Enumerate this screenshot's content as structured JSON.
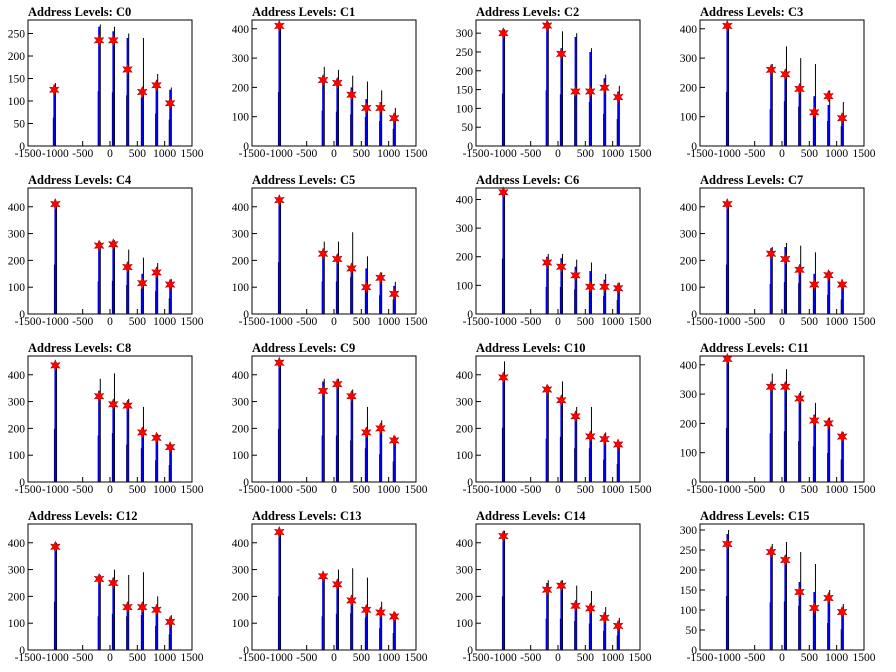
{
  "colors": {
    "background": "#ffffff",
    "axis": "#000000",
    "histogram_black": "#000000",
    "histogram_blue": "#0000ff",
    "marker": "#ff0000"
  },
  "chart_data": [
    {
      "title": "Address Levels: C0",
      "type": "bar",
      "xlim": [
        -1500,
        1500
      ],
      "ylim": [
        0,
        280
      ],
      "xticks": [
        "-1500",
        "-1000",
        "-500",
        "0",
        "500",
        "1000",
        "1500"
      ],
      "yticks": [
        "0",
        "50",
        "100",
        "150",
        "200",
        "250"
      ],
      "peaks_x": [
        -1020,
        -200,
        60,
        320,
        590,
        850,
        1100
      ],
      "peaks_y_black": [
        140,
        270,
        265,
        250,
        240,
        160,
        130
      ],
      "peaks_y_blue": [
        135,
        265,
        255,
        240,
        125,
        135,
        125
      ],
      "markers_y": [
        125,
        235,
        235,
        170,
        120,
        135,
        95
      ]
    },
    {
      "title": "Address Levels: C1",
      "type": "bar",
      "xlim": [
        -1500,
        1500
      ],
      "ylim": [
        0,
        430
      ],
      "xticks": [
        "-1500",
        "-1000",
        "-500",
        "0",
        "500",
        "1000",
        "1500"
      ],
      "yticks": [
        "0",
        "100",
        "200",
        "300",
        "400"
      ],
      "peaks_x": [
        -1000,
        -200,
        60,
        320,
        590,
        850,
        1100
      ],
      "peaks_y_black": [
        410,
        270,
        260,
        240,
        220,
        190,
        130
      ],
      "peaks_y_blue": [
        405,
        240,
        230,
        200,
        160,
        150,
        110
      ],
      "markers_y": [
        410,
        225,
        215,
        175,
        130,
        130,
        95
      ]
    },
    {
      "title": "Address Levels: C2",
      "type": "bar",
      "xlim": [
        -1500,
        1500
      ],
      "ylim": [
        0,
        335
      ],
      "xticks": [
        "-1500",
        "-1000",
        "-500",
        "0",
        "500",
        "1000",
        "1500"
      ],
      "yticks": [
        "0",
        "50",
        "100",
        "150",
        "200",
        "250",
        "300"
      ],
      "peaks_x": [
        -1000,
        -200,
        60,
        320,
        590,
        850,
        1100
      ],
      "peaks_y_black": [
        310,
        330,
        305,
        300,
        260,
        190,
        160
      ],
      "peaks_y_blue": [
        305,
        320,
        260,
        290,
        250,
        180,
        145
      ],
      "markers_y": [
        300,
        320,
        245,
        145,
        145,
        155,
        130
      ]
    },
    {
      "title": "Address Levels: C3",
      "type": "bar",
      "xlim": [
        -1500,
        1500
      ],
      "ylim": [
        0,
        430
      ],
      "xticks": [
        "-1500",
        "-1000",
        "-500",
        "0",
        "500",
        "1000",
        "1500"
      ],
      "yticks": [
        "0",
        "100",
        "200",
        "300",
        "400"
      ],
      "peaks_x": [
        -1000,
        -200,
        60,
        320,
        590,
        850,
        1100
      ],
      "peaks_y_black": [
        410,
        280,
        340,
        300,
        280,
        190,
        150
      ],
      "peaks_y_blue": [
        405,
        270,
        250,
        200,
        170,
        140,
        110
      ],
      "markers_y": [
        410,
        260,
        245,
        195,
        115,
        170,
        95
      ]
    },
    {
      "title": "Address Levels: C4",
      "type": "bar",
      "xlim": [
        -1500,
        1500
      ],
      "ylim": [
        0,
        470
      ],
      "xticks": [
        "-1500",
        "-1000",
        "-500",
        "0",
        "500",
        "1000",
        "1500"
      ],
      "yticks": [
        "0",
        "100",
        "200",
        "300",
        "400"
      ],
      "peaks_x": [
        -1000,
        -200,
        60,
        320,
        590,
        850,
        1100
      ],
      "peaks_y_black": [
        410,
        270,
        275,
        240,
        210,
        190,
        130
      ],
      "peaks_y_blue": [
        405,
        265,
        260,
        180,
        150,
        170,
        110
      ],
      "markers_y": [
        410,
        255,
        260,
        175,
        115,
        155,
        110
      ]
    },
    {
      "title": "Address Levels: C5",
      "type": "bar",
      "xlim": [
        -1500,
        1500
      ],
      "ylim": [
        0,
        470
      ],
      "xticks": [
        "-1500",
        "-1000",
        "-500",
        "0",
        "500",
        "1000",
        "1500"
      ],
      "yticks": [
        "0",
        "100",
        "200",
        "300",
        "400"
      ],
      "peaks_x": [
        -1000,
        -200,
        60,
        320,
        590,
        850,
        1100
      ],
      "peaks_y_black": [
        430,
        270,
        270,
        305,
        215,
        155,
        120
      ],
      "peaks_y_blue": [
        425,
        230,
        220,
        185,
        170,
        150,
        105
      ],
      "markers_y": [
        425,
        225,
        205,
        170,
        100,
        135,
        75
      ]
    },
    {
      "title": "Address Levels: C6",
      "type": "bar",
      "xlim": [
        -1500,
        1500
      ],
      "ylim": [
        0,
        440
      ],
      "xticks": [
        "-1500",
        "-1000",
        "-500",
        "0",
        "500",
        "1000",
        "1500"
      ],
      "yticks": [
        "0",
        "100",
        "200",
        "300",
        "400"
      ],
      "peaks_x": [
        -1000,
        -200,
        60,
        320,
        590,
        850,
        1100
      ],
      "peaks_y_black": [
        430,
        210,
        210,
        190,
        180,
        140,
        110
      ],
      "peaks_y_blue": [
        425,
        200,
        195,
        165,
        150,
        120,
        100
      ],
      "markers_y": [
        425,
        180,
        165,
        135,
        95,
        95,
        90
      ]
    },
    {
      "title": "Address Levels: C7",
      "type": "bar",
      "xlim": [
        -1500,
        1500
      ],
      "ylim": [
        0,
        470
      ],
      "xticks": [
        "-1500",
        "-1000",
        "-500",
        "0",
        "500",
        "1000",
        "1500"
      ],
      "yticks": [
        "0",
        "100",
        "200",
        "300",
        "400"
      ],
      "peaks_x": [
        -1000,
        -200,
        60,
        320,
        590,
        850,
        1100
      ],
      "peaks_y_black": [
        410,
        250,
        265,
        255,
        230,
        160,
        120
      ],
      "peaks_y_blue": [
        405,
        245,
        250,
        180,
        150,
        155,
        110
      ],
      "markers_y": [
        410,
        225,
        205,
        165,
        110,
        145,
        110
      ]
    },
    {
      "title": "Address Levels: C8",
      "type": "bar",
      "xlim": [
        -1500,
        1500
      ],
      "ylim": [
        0,
        470
      ],
      "xticks": [
        "-1500",
        "-1000",
        "-500",
        "0",
        "500",
        "1000",
        "1500"
      ],
      "yticks": [
        "0",
        "100",
        "200",
        "300",
        "400"
      ],
      "peaks_x": [
        -1000,
        -200,
        60,
        320,
        590,
        850,
        1100
      ],
      "peaks_y_black": [
        440,
        385,
        405,
        310,
        280,
        180,
        140
      ],
      "peaks_y_blue": [
        435,
        340,
        300,
        295,
        200,
        175,
        125
      ],
      "markers_y": [
        435,
        320,
        290,
        285,
        185,
        165,
        130
      ]
    },
    {
      "title": "Address Levels: C9",
      "type": "bar",
      "xlim": [
        -1500,
        1500
      ],
      "ylim": [
        0,
        470
      ],
      "xticks": [
        "-1500",
        "-1000",
        "-500",
        "0",
        "500",
        "1000",
        "1500"
      ],
      "yticks": [
        "0",
        "100",
        "200",
        "300",
        "400"
      ],
      "peaks_x": [
        -1000,
        -200,
        60,
        320,
        590,
        850,
        1100
      ],
      "peaks_y_black": [
        440,
        385,
        385,
        345,
        280,
        230,
        170
      ],
      "peaks_y_blue": [
        435,
        375,
        370,
        330,
        200,
        210,
        160
      ],
      "markers_y": [
        445,
        340,
        365,
        320,
        185,
        200,
        155
      ]
    },
    {
      "title": "Address Levels: C10",
      "type": "bar",
      "xlim": [
        -1500,
        1500
      ],
      "ylim": [
        0,
        470
      ],
      "xticks": [
        "-1500",
        "-1000",
        "-500",
        "0",
        "500",
        "1000",
        "1500"
      ],
      "yticks": [
        "0",
        "100",
        "200",
        "300",
        "400"
      ],
      "peaks_x": [
        -1000,
        -200,
        60,
        320,
        590,
        850,
        1100
      ],
      "peaks_y_black": [
        450,
        360,
        375,
        280,
        280,
        185,
        150
      ],
      "peaks_y_blue": [
        400,
        350,
        310,
        250,
        180,
        170,
        140
      ],
      "markers_y": [
        390,
        345,
        305,
        245,
        170,
        160,
        140
      ]
    },
    {
      "title": "Address Levels: C11",
      "type": "bar",
      "xlim": [
        -1500,
        1500
      ],
      "ylim": [
        0,
        430
      ],
      "xticks": [
        "-1500",
        "-1000",
        "-500",
        "0",
        "500",
        "1000",
        "1500"
      ],
      "yticks": [
        "0",
        "100",
        "200",
        "300",
        "400"
      ],
      "peaks_x": [
        -1000,
        -200,
        60,
        320,
        590,
        850,
        1100
      ],
      "peaks_y_black": [
        410,
        370,
        385,
        310,
        270,
        220,
        170
      ],
      "peaks_y_blue": [
        405,
        340,
        330,
        300,
        230,
        210,
        160
      ],
      "markers_y": [
        420,
        325,
        325,
        285,
        210,
        200,
        155
      ]
    },
    {
      "title": "Address Levels: C12",
      "type": "bar",
      "xlim": [
        -1500,
        1500
      ],
      "ylim": [
        0,
        470
      ],
      "xticks": [
        "-1500",
        "-1000",
        "-500",
        "0",
        "500",
        "1000",
        "1500"
      ],
      "yticks": [
        "0",
        "100",
        "200",
        "300",
        "400"
      ],
      "peaks_x": [
        -1000,
        -200,
        60,
        320,
        590,
        850,
        1100
      ],
      "peaks_y_black": [
        400,
        280,
        300,
        280,
        290,
        200,
        130
      ],
      "peaks_y_blue": [
        395,
        275,
        270,
        170,
        170,
        160,
        110
      ],
      "markers_y": [
        385,
        265,
        250,
        160,
        160,
        150,
        105
      ]
    },
    {
      "title": "Address Levels: C13",
      "type": "bar",
      "xlim": [
        -1500,
        1500
      ],
      "ylim": [
        0,
        470
      ],
      "xticks": [
        "-1500",
        "-1000",
        "-500",
        "0",
        "500",
        "1000",
        "1500"
      ],
      "yticks": [
        "0",
        "100",
        "200",
        "300",
        "400"
      ],
      "peaks_x": [
        -1000,
        -200,
        60,
        320,
        590,
        850,
        1100
      ],
      "peaks_y_black": [
        445,
        280,
        300,
        305,
        270,
        180,
        140
      ],
      "peaks_y_blue": [
        440,
        275,
        250,
        190,
        155,
        150,
        130
      ],
      "markers_y": [
        440,
        275,
        245,
        185,
        150,
        140,
        125
      ]
    },
    {
      "title": "Address Levels: C14",
      "type": "bar",
      "xlim": [
        -1500,
        1500
      ],
      "ylim": [
        0,
        470
      ],
      "xticks": [
        "-1500",
        "-1000",
        "-500",
        "0",
        "500",
        "1000",
        "1500"
      ],
      "yticks": [
        "0",
        "100",
        "200",
        "300",
        "400"
      ],
      "peaks_x": [
        -1000,
        -200,
        60,
        320,
        590,
        850,
        1100
      ],
      "peaks_y_black": [
        445,
        260,
        260,
        240,
        220,
        160,
        120
      ],
      "peaks_y_blue": [
        440,
        250,
        250,
        180,
        170,
        140,
        100
      ],
      "markers_y": [
        425,
        225,
        240,
        165,
        155,
        120,
        90
      ]
    },
    {
      "title": "Address Levels: C15",
      "type": "bar",
      "xlim": [
        -1500,
        1500
      ],
      "ylim": [
        0,
        315
      ],
      "xticks": [
        "-1500",
        "-1000",
        "-500",
        "0",
        "500",
        "1000",
        "1500"
      ],
      "yticks": [
        "0",
        "50",
        "100",
        "150",
        "200",
        "250",
        "300"
      ],
      "peaks_x": [
        -1000,
        -200,
        60,
        320,
        590,
        850,
        1100
      ],
      "peaks_y_black": [
        300,
        265,
        270,
        245,
        215,
        150,
        115
      ],
      "peaks_y_blue": [
        290,
        255,
        235,
        170,
        145,
        135,
        105
      ],
      "markers_y": [
        265,
        245,
        225,
        145,
        105,
        130,
        95
      ]
    }
  ]
}
